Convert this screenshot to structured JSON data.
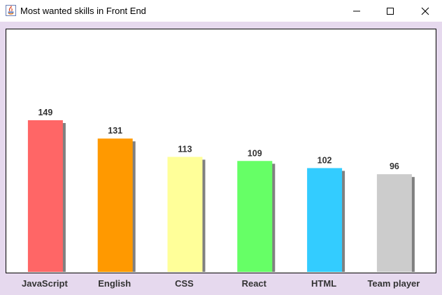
{
  "window": {
    "title": "Most wanted skills in Front End",
    "controls": [
      "minimize-icon",
      "maximize-icon",
      "close-icon"
    ],
    "background": "#e6d9ee"
  },
  "chart_data": {
    "type": "bar",
    "title": "",
    "xlabel": "",
    "ylabel": "",
    "categories": [
      "JavaScript",
      "English",
      "CSS",
      "React",
      "HTML",
      "Team player"
    ],
    "values": [
      149,
      131,
      113,
      109,
      102,
      96
    ],
    "colors": [
      "#ff6666",
      "#ff9900",
      "#ffff99",
      "#66ff66",
      "#33ccff",
      "#cccccc"
    ],
    "shadow_color": "#808080",
    "ylim": [
      0,
      260
    ],
    "grid": false,
    "legend": "none",
    "value_labels": true
  }
}
